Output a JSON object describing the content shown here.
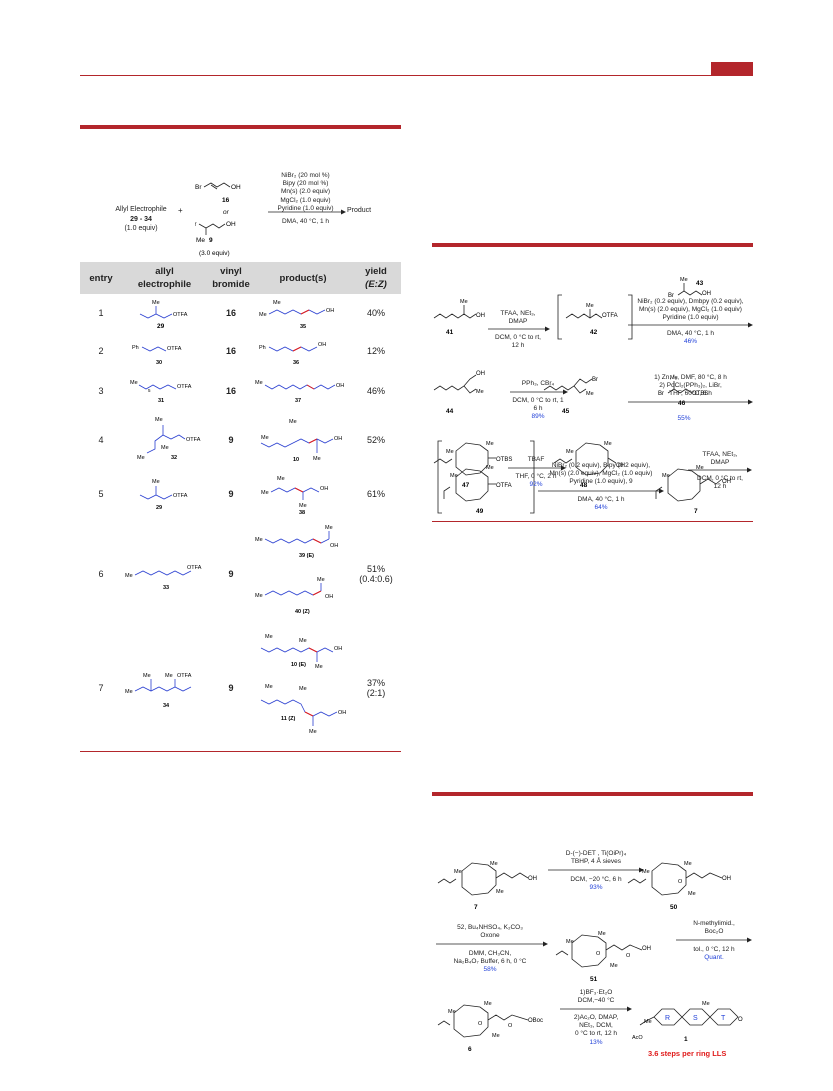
{
  "table": {
    "headers": {
      "entry": "entry",
      "allyl_line1": "allyl",
      "allyl_line2": "electrophile",
      "vinyl_line1": "vinyl",
      "vinyl_line2": "bromide",
      "products": "product(s)",
      "yield_line1": "yield",
      "yield_line2": "(E:Z)"
    },
    "rows": [
      {
        "entry": "1",
        "electrophile": "29",
        "vinyl": "16",
        "products": [
          "35"
        ],
        "yield": "40%",
        "ratio": ""
      },
      {
        "entry": "2",
        "electrophile": "30",
        "vinyl": "16",
        "products": [
          "36"
        ],
        "yield": "12%",
        "ratio": ""
      },
      {
        "entry": "3",
        "electrophile": "31",
        "vinyl": "16",
        "products": [
          "37"
        ],
        "yield": "46%",
        "ratio": ""
      },
      {
        "entry": "4",
        "electrophile": "32",
        "vinyl": "9",
        "products": [
          "10"
        ],
        "yield": "52%",
        "ratio": ""
      },
      {
        "entry": "5",
        "electrophile": "29",
        "vinyl": "9",
        "products": [
          "38"
        ],
        "yield": "61%",
        "ratio": ""
      },
      {
        "entry": "6",
        "electrophile": "33",
        "vinyl": "9",
        "products": [
          "39 (E)",
          "40 (Z)"
        ],
        "yield": "51%",
        "ratio": "(0.4:0.6)"
      },
      {
        "entry": "7",
        "electrophile": "34",
        "vinyl": "9",
        "products": [
          "10 (E)",
          "11 (Z)"
        ],
        "yield": "37%",
        "ratio": "(2:1)"
      }
    ]
  },
  "scheme_top": {
    "reactant_title": "Allyl Electrophile",
    "reactant_nums": "29 - 34",
    "reactant_equiv": "(1.0 equiv)",
    "plus": "+",
    "bromide_a": "16",
    "or": "or",
    "bromide_b": "9",
    "bromide_equiv": "(3.0 equiv)",
    "conditions": [
      "NiBr₂ (20 mol %)",
      "Bipy (20 mol %)",
      "Mn(s) (2.0 equiv)",
      "MgCl₂ (1.0 equiv)",
      "Pyridine (1.0 equiv)"
    ],
    "conditions_below": "DMA, 40 °C, 1 h",
    "product": "Product"
  },
  "scheme_right1": {
    "s1_above": [
      "TFAA, NEt₃,",
      "DMAP"
    ],
    "s1_below": [
      "DCM, 0 °C to rt,",
      "12 h"
    ],
    "s2_reagent": "43",
    "s2_above": [
      "NiBr₂ (0.2 equiv), Dmbpy (0.2 equiv),",
      "Mn(s) (2.0 equiv), MgCl₂ (1.0 equiv)",
      "Pyridine (1.0 equiv)"
    ],
    "s2_below": "DMA, 40 °C, 1 h",
    "s2_yield": "46%",
    "s3_above": "PPh₃, CBr₄",
    "s3_below": [
      "DCM, 0 °C to rt, 1",
      "6 h"
    ],
    "s3_yield": "89%",
    "s4_above": [
      "1) Zn, I₂, DMF, 80 °C, 8 h",
      "2) PdCl₂(PPh₃)₂, LiBr,",
      "THF, 60°C, 6 h"
    ],
    "s4_reagent": "46",
    "s4_yield": "55%",
    "s5_above": "TBAF",
    "s5_below": "THF, 0 °C, 2 h",
    "s5_yield": "92%",
    "s6_above": [
      "TFAA, NEt₃,",
      "DMAP"
    ],
    "s6_below": [
      "DCM, 0 °C to rt,",
      "12 h"
    ],
    "s7_above": [
      "NiBr₂ (0.2 equiv), Bipy (0.2 equiv),",
      "Mn(s) (2.0 equiv), MgCl₂ (1.0 equiv)",
      "Pyridine (1.0 equiv), 9"
    ],
    "s7_below": "DMA, 40 °C, 1 h",
    "s7_yield": "64%",
    "compounds": [
      "41",
      "42",
      "44",
      "45",
      "47",
      "48",
      "49",
      "7"
    ]
  },
  "scheme_right2": {
    "e1_above": [
      "D-(−)-DET , Ti(OiPr)₄",
      "TBHP, 4 Å sieves"
    ],
    "e1_below": "DCM, −20 °C, 6 h",
    "e1_yield": "93%",
    "e2_above": [
      "52, Bu₄NHSO₄, K₂CO₃",
      "Oxone"
    ],
    "e2_below": [
      "DMM, CH₃CN,",
      "Na₂B₄O₇ Buffer, 6 h, 0 °C"
    ],
    "e2_yield": "58%",
    "e3_above": [
      "N-methylimid.,",
      "Boc₂O"
    ],
    "e3_below": "tol., 0 °C, 12 h",
    "e3_yield": "Quant.",
    "e4_above": [
      "1)BF₃·Et₂O",
      "DCM,−40 °C"
    ],
    "e4_below": [
      "2)Ac₂O, DMAP,",
      "NEt₃, DCM,",
      "0 °C to rt, 12 h"
    ],
    "e4_yield": "13%",
    "compounds": [
      "7",
      "50",
      "51",
      "6",
      "1"
    ],
    "ring_labels": [
      "R",
      "S",
      "T"
    ],
    "footer": "3.6 steps per ring LLS"
  },
  "colors": {
    "accent": "#b3262b",
    "blue": "#1f3fd8",
    "red": "#e01b1b",
    "table_header": "#d9d9d9"
  }
}
